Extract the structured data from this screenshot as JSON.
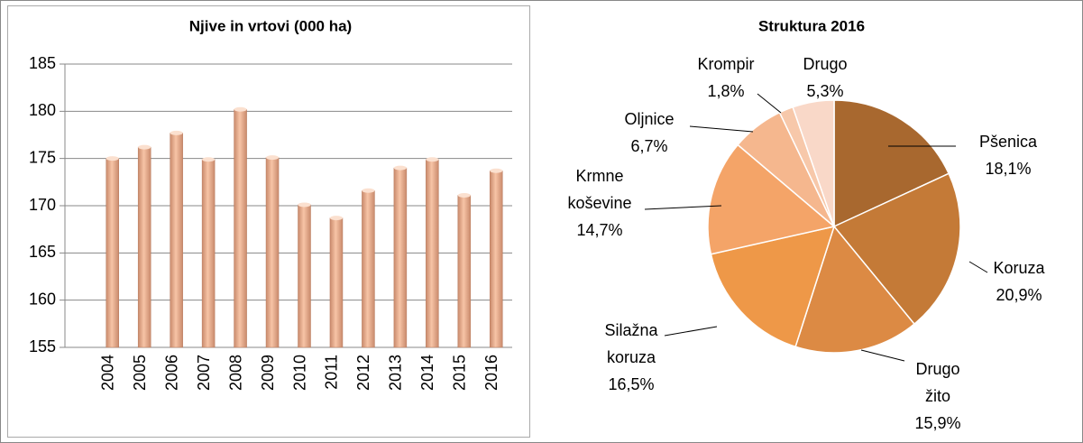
{
  "chart_data": [
    {
      "type": "bar",
      "title": "Njive in vrtovi (000 ha)",
      "categories": [
        "2004",
        "2005",
        "2006",
        "2007",
        "2008",
        "2009",
        "2010",
        "2011",
        "2012",
        "2013",
        "2014",
        "2015",
        "2016"
      ],
      "values": [
        175.0,
        176.2,
        177.7,
        174.9,
        180.2,
        175.1,
        170.1,
        168.7,
        171.6,
        174.0,
        174.9,
        171.1,
        173.7
      ],
      "color": "#f2b494",
      "ylim": [
        155,
        185
      ],
      "yticks": [
        155,
        160,
        165,
        170,
        175,
        180,
        185
      ],
      "grid": true
    },
    {
      "type": "pie",
      "title": "Struktura 2016",
      "categories": [
        "Pšenica",
        "Koruza",
        "Drugo žito",
        "Silažna koruza",
        "Krmne koševine",
        "Oljnice",
        "Krompir",
        "Drugo"
      ],
      "values": [
        18.1,
        20.9,
        15.9,
        16.5,
        14.7,
        6.7,
        1.8,
        5.3
      ],
      "value_labels": [
        "18,1%",
        "20,9%",
        "15,9%",
        "16,5%",
        "14,7%",
        "6,7%",
        "1,8%",
        "5,3%"
      ],
      "colors": [
        "#a8682f",
        "#c47a37",
        "#dc8a44",
        "#ee9848",
        "#f4a468",
        "#f5b78e",
        "#f7c8aa",
        "#f9d8c8"
      ]
    }
  ]
}
